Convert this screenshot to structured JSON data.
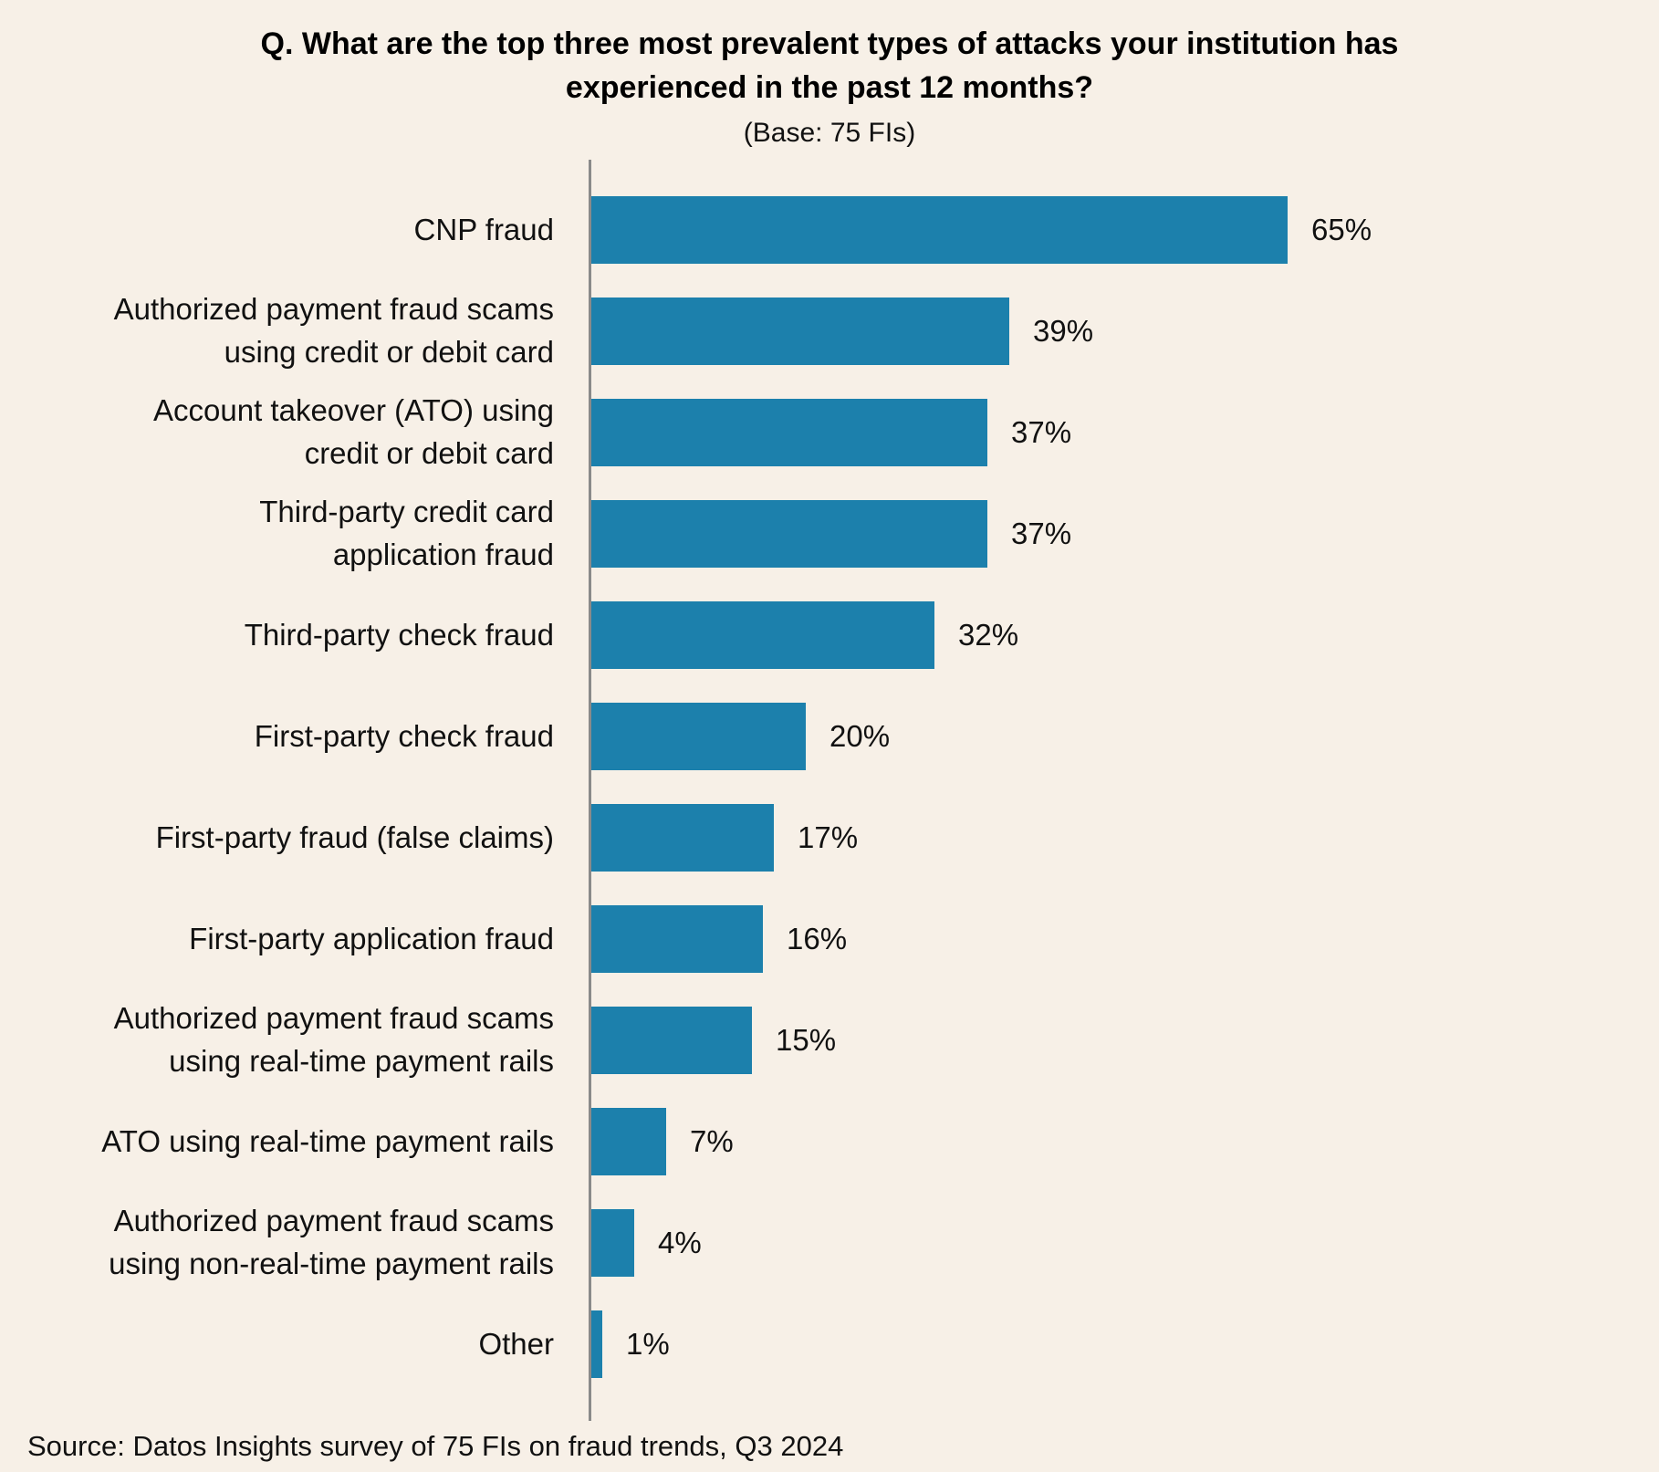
{
  "header": {
    "title": "Q. What are the top three most prevalent types of attacks your institution has\nexperienced in the past 12 months?",
    "subtitle": "(Base: 75 FIs)"
  },
  "chart_data": {
    "type": "bar",
    "orientation": "horizontal",
    "title": "Q. What are the top three most prevalent types of attacks your institution has experienced in the past 12 months?",
    "subtitle": "(Base: 75 FIs)",
    "categories": [
      "CNP fraud",
      "Authorized payment fraud scams\nusing credit or debit card",
      "Account takeover (ATO) using\ncredit or debit card",
      "Third-party credit card\napplication fraud",
      "Third-party check fraud",
      "First-party check fraud",
      "First-party fraud (false claims)",
      "First-party application fraud",
      "Authorized payment fraud scams\nusing real-time payment rails",
      "ATO using real-time payment rails",
      "Authorized payment fraud scams\nusing non-real-time payment rails",
      "Other"
    ],
    "values": [
      65,
      39,
      37,
      37,
      32,
      20,
      17,
      16,
      15,
      7,
      4,
      1
    ],
    "value_suffix": "%",
    "xlabel": "",
    "ylabel": "",
    "xlim": [
      0,
      70
    ],
    "grid": false,
    "legend": null,
    "value_labels_shown": true
  },
  "footer": {
    "source": "Source: Datos Insights survey of 75 FIs on fraud trends, Q3 2024"
  },
  "colors": {
    "background": "#F7F0E7",
    "bar": "#1C80AC",
    "axis": "#8A8A8A",
    "text": "#111111"
  }
}
